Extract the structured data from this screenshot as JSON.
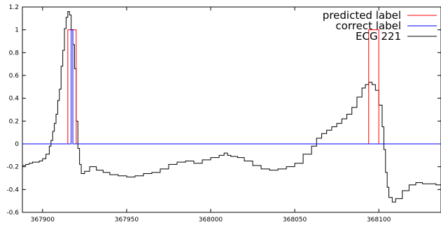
{
  "chart_data": {
    "type": "line",
    "xlim": [
      367888,
      368137
    ],
    "ylim": [
      -0.6,
      1.2
    ],
    "xticks": [
      367900,
      367950,
      368000,
      368050,
      368100
    ],
    "yticks": [
      -0.6,
      -0.4,
      -0.2,
      0,
      0.2,
      0.4,
      0.6,
      0.8,
      1,
      1.2
    ],
    "xtick_labels": [
      "367900",
      "367950",
      "368000",
      "368050",
      "368100"
    ],
    "ytick_labels": [
      "-0.6",
      "-0.4",
      "-0.2",
      "0",
      "0.2",
      "0.4",
      "0.6",
      "0.8",
      "1",
      "1.2"
    ],
    "grid": false,
    "legend_position": "top-right",
    "series": [
      {
        "name": "predicted label",
        "color": "#ff0000",
        "step": true,
        "x": [
          367888,
          367915,
          367915,
          367920,
          367920,
          368094,
          368094,
          368100,
          368100,
          368137
        ],
        "y": [
          0,
          0,
          1,
          1,
          0,
          0,
          1,
          1,
          0,
          0
        ]
      },
      {
        "name": "correct label",
        "color": "#0000ff",
        "step": true,
        "x": [
          367888,
          367917,
          367917,
          367918,
          367918,
          368137
        ],
        "y": [
          0,
          0,
          1,
          1,
          0,
          0
        ]
      },
      {
        "name": "ECG 221",
        "color": "#000000",
        "step": true,
        "x": [
          367888,
          367890,
          367892,
          367894,
          367896,
          367898,
          367900,
          367902,
          367904,
          367905,
          367906,
          367907,
          367908,
          367909,
          367910,
          367911,
          367912,
          367913,
          367914,
          367915,
          367916,
          367917,
          367918,
          367919,
          367920,
          367921,
          367922,
          367923,
          367925,
          367928,
          367932,
          367936,
          367940,
          367945,
          367950,
          367955,
          367960,
          367965,
          367970,
          367975,
          367980,
          367985,
          367990,
          367995,
          368000,
          368005,
          368008,
          368010,
          368012,
          368016,
          368020,
          368025,
          368030,
          368035,
          368040,
          368045,
          368050,
          368055,
          368060,
          368063,
          368066,
          368069,
          368072,
          368075,
          368078,
          368081,
          368084,
          368087,
          368090,
          368092,
          368094,
          368096,
          368098,
          368100,
          368102,
          368103,
          368104,
          368105,
          368106,
          368108,
          368110,
          368114,
          368118,
          368122,
          368126,
          368130,
          368134,
          368137
        ],
        "y": [
          -0.19,
          -0.18,
          -0.17,
          -0.16,
          -0.16,
          -0.15,
          -0.13,
          -0.09,
          -0.02,
          0.03,
          0.11,
          0.18,
          0.26,
          0.38,
          0.48,
          0.68,
          0.82,
          1.01,
          1.11,
          1.16,
          1.13,
          1.0,
          0.87,
          0.66,
          0.2,
          -0.04,
          -0.18,
          -0.26,
          -0.24,
          -0.2,
          -0.23,
          -0.25,
          -0.27,
          -0.28,
          -0.29,
          -0.28,
          -0.26,
          -0.25,
          -0.22,
          -0.18,
          -0.16,
          -0.15,
          -0.17,
          -0.14,
          -0.12,
          -0.1,
          -0.08,
          -0.1,
          -0.11,
          -0.12,
          -0.15,
          -0.19,
          -0.22,
          -0.23,
          -0.22,
          -0.2,
          -0.17,
          -0.09,
          -0.02,
          0.05,
          0.09,
          0.12,
          0.15,
          0.18,
          0.22,
          0.26,
          0.32,
          0.41,
          0.49,
          0.52,
          0.54,
          0.52,
          0.47,
          0.34,
          0.15,
          -0.05,
          -0.25,
          -0.38,
          -0.47,
          -0.51,
          -0.48,
          -0.41,
          -0.36,
          -0.34,
          -0.35,
          -0.35,
          -0.36,
          -0.37
        ]
      }
    ]
  }
}
